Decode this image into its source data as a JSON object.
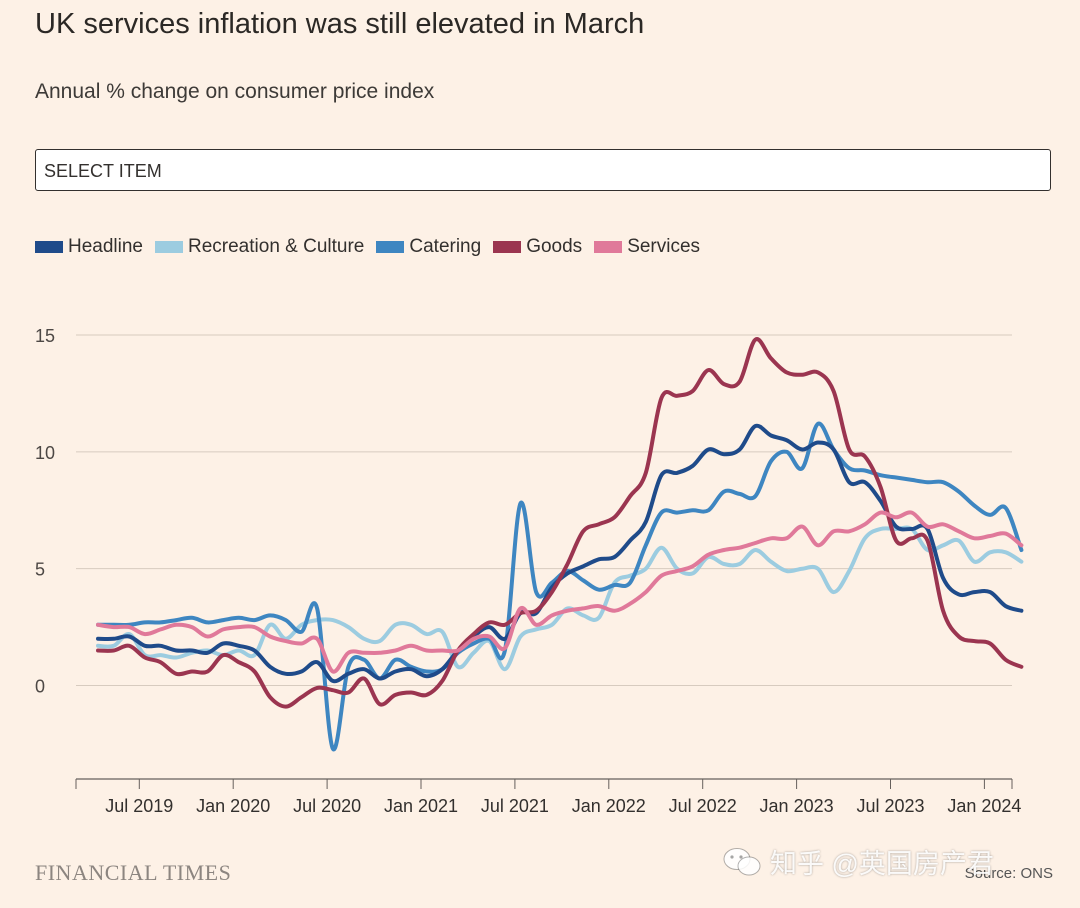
{
  "title": "UK services inflation was still elevated in March",
  "subtitle": "Annual % change on consumer price index",
  "select": {
    "label": "SELECT ITEM"
  },
  "footer": {
    "publisher": "FINANCIAL TIMES",
    "source": "Source: ONS",
    "watermark": "知乎 @英国房产君"
  },
  "chart_data": {
    "type": "line",
    "title": "UK services inflation was still elevated in March",
    "subtitle": "Annual % change on consumer price index",
    "xlabel": "",
    "ylabel": "",
    "ylim": [
      -4,
      15
    ],
    "yticks": [
      0,
      5,
      10,
      15
    ],
    "grid": true,
    "legend_position": "top-left",
    "x_start": "2019-05",
    "x_end": "2024-03",
    "xtick_labels": [
      {
        "label": "Jul 2019",
        "t": 2
      },
      {
        "label": "Jan 2020",
        "t": 8
      },
      {
        "label": "Jul 2020",
        "t": 14
      },
      {
        "label": "Jan 2021",
        "t": 20
      },
      {
        "label": "Jul 2021",
        "t": 26
      },
      {
        "label": "Jan 2022",
        "t": 32
      },
      {
        "label": "Jul 2022",
        "t": 38
      },
      {
        "label": "Jan 2023",
        "t": 44
      },
      {
        "label": "Jul 2023",
        "t": 50
      },
      {
        "label": "Jan 2024",
        "t": 56
      }
    ],
    "series": [
      {
        "name": "Headline",
        "color": "#1f4b8a",
        "values": [
          2.0,
          2.0,
          2.1,
          1.7,
          1.7,
          1.5,
          1.5,
          1.4,
          1.8,
          1.7,
          1.5,
          0.8,
          0.5,
          0.6,
          1.0,
          0.2,
          0.5,
          0.7,
          0.3,
          0.6,
          0.7,
          0.4,
          0.7,
          1.5,
          2.1,
          2.5,
          2.0,
          3.1,
          3.1,
          4.2,
          4.8,
          5.1,
          5.4,
          5.5,
          6.2,
          7.0,
          9.0,
          9.1,
          9.4,
          10.1,
          9.9,
          10.1,
          11.1,
          10.7,
          10.5,
          10.1,
          10.4,
          10.1,
          8.7,
          8.7,
          7.9,
          6.8,
          6.7,
          6.7,
          4.6,
          3.9,
          4.0,
          4.0,
          3.4,
          3.2
        ]
      },
      {
        "name": "Recreation & Culture",
        "color": "#9ccce0",
        "values": [
          1.7,
          1.7,
          2.2,
          1.3,
          1.3,
          1.2,
          1.4,
          1.5,
          1.3,
          1.5,
          1.3,
          2.6,
          2.0,
          2.6,
          2.8,
          2.8,
          2.5,
          2.0,
          1.9,
          2.6,
          2.6,
          2.2,
          2.3,
          0.8,
          1.4,
          1.9,
          0.7,
          2.1,
          2.4,
          2.6,
          3.3,
          3.0,
          2.9,
          4.4,
          4.7,
          5.0,
          5.9,
          5.0,
          4.8,
          5.5,
          5.2,
          5.2,
          5.8,
          5.3,
          4.9,
          5.0,
          5.0,
          4.0,
          4.9,
          6.3,
          6.7,
          6.7,
          6.7,
          5.8,
          6.0,
          6.2,
          5.3,
          5.7,
          5.7,
          5.3
        ]
      },
      {
        "name": "Catering",
        "color": "#3e86c1",
        "values": [
          2.6,
          2.6,
          2.6,
          2.7,
          2.7,
          2.8,
          2.9,
          2.7,
          2.8,
          2.9,
          2.8,
          3.0,
          2.8,
          2.3,
          3.3,
          -2.7,
          0.8,
          1.1,
          0.3,
          1.1,
          0.8,
          0.6,
          0.7,
          1.4,
          1.8,
          2.0,
          1.5,
          7.8,
          4.0,
          4.4,
          4.9,
          4.5,
          4.1,
          4.3,
          4.4,
          6.0,
          7.4,
          7.4,
          7.5,
          7.5,
          8.3,
          8.2,
          8.1,
          9.6,
          10.0,
          9.3,
          11.2,
          10.1,
          9.3,
          9.2,
          9.0,
          8.9,
          8.8,
          8.7,
          8.7,
          8.3,
          7.7,
          7.3,
          7.6,
          5.8
        ]
      },
      {
        "name": "Goods",
        "color": "#9b3550",
        "values": [
          1.5,
          1.5,
          1.7,
          1.2,
          1.0,
          0.5,
          0.6,
          0.6,
          1.3,
          1.0,
          0.6,
          -0.5,
          -0.9,
          -0.5,
          -0.1,
          -0.2,
          -0.3,
          0.3,
          -0.8,
          -0.4,
          -0.3,
          -0.4,
          0.2,
          1.5,
          2.2,
          2.7,
          2.6,
          3.1,
          3.2,
          4.0,
          5.2,
          6.6,
          6.9,
          7.2,
          8.1,
          9.1,
          12.3,
          12.4,
          12.6,
          13.5,
          12.9,
          13.0,
          14.8,
          14.0,
          13.4,
          13.3,
          13.4,
          12.6,
          10.1,
          9.8,
          8.5,
          6.2,
          6.3,
          6.2,
          3.2,
          2.1,
          1.9,
          1.8,
          1.1,
          0.8
        ]
      },
      {
        "name": "Services",
        "color": "#e0799a",
        "values": [
          2.6,
          2.5,
          2.5,
          2.2,
          2.4,
          2.6,
          2.5,
          2.1,
          2.4,
          2.5,
          2.5,
          2.1,
          1.9,
          1.8,
          2.0,
          0.6,
          1.4,
          1.4,
          1.4,
          1.5,
          1.7,
          1.5,
          1.5,
          1.5,
          2.0,
          2.1,
          1.6,
          3.3,
          2.6,
          3.0,
          3.2,
          3.3,
          3.4,
          3.2,
          3.5,
          4.0,
          4.7,
          4.9,
          5.1,
          5.6,
          5.8,
          5.9,
          6.1,
          6.3,
          6.3,
          6.8,
          6.0,
          6.6,
          6.6,
          6.9,
          7.4,
          7.2,
          7.4,
          6.8,
          6.9,
          6.6,
          6.3,
          6.4,
          6.5,
          6.0
        ]
      }
    ]
  }
}
